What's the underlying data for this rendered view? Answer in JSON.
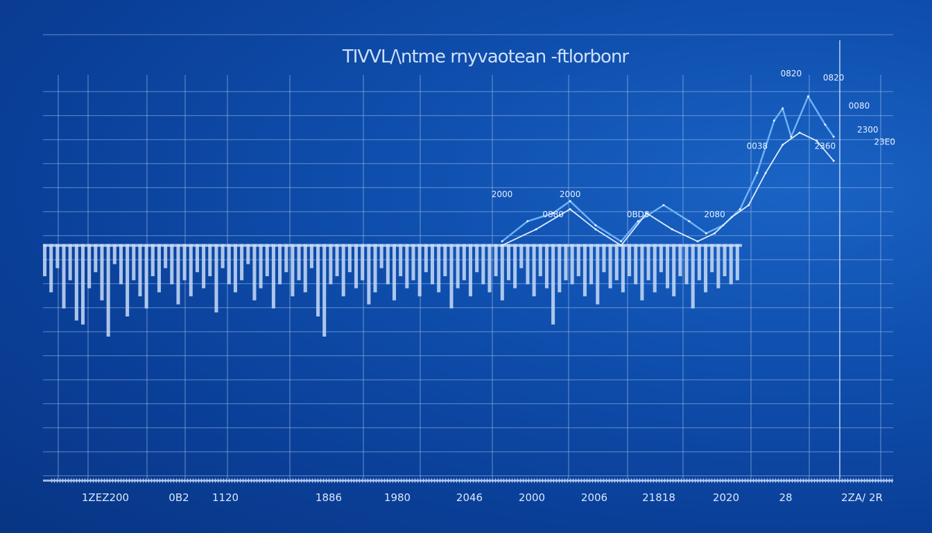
{
  "title": "TIVVL/\\ntme rnyvaotean -ftlorbonr",
  "chart_data": {
    "type": "line",
    "title": "TIVVL/\\ntme rnyvaotean -ftlorbonr",
    "xlabel": "",
    "ylabel": "",
    "x_tick_labels": [
      "1ZEZ200",
      "0B2",
      "1120",
      "1886",
      "1980",
      "2046",
      "2000",
      "2006",
      "21818",
      "2020",
      "28",
      "2ZA/ 2R"
    ],
    "grid": true,
    "ylim": [
      0,
      10
    ],
    "baseline": 5.8,
    "bars": [
      0.8,
      1.2,
      0.6,
      1.6,
      0.9,
      1.9,
      2.0,
      1.1,
      0.7,
      1.4,
      2.3,
      0.5,
      1.0,
      1.8,
      0.9,
      1.3,
      1.6,
      0.8,
      1.2,
      0.6,
      1.0,
      1.5,
      0.9,
      1.3,
      0.7,
      1.1,
      0.8,
      1.7,
      0.6,
      1.0,
      1.2,
      0.9,
      0.5,
      1.4,
      1.1,
      0.8,
      1.6,
      1.0,
      0.7,
      1.3,
      0.9,
      1.2,
      0.6,
      1.8,
      2.3,
      1.0,
      0.8,
      1.3,
      0.7,
      1.1,
      0.9,
      1.5,
      1.2,
      0.6,
      1.0,
      1.4,
      0.8,
      1.1,
      0.9,
      1.3,
      0.7,
      1.0,
      1.2,
      0.8,
      1.6,
      1.1,
      0.9,
      1.3,
      0.7,
      1.0,
      1.2,
      0.8,
      1.4,
      0.9,
      1.1,
      0.6,
      1.0,
      1.3,
      0.8,
      1.1,
      2.0,
      1.2,
      0.9,
      1.0,
      0.8,
      1.3,
      1.0,
      1.5,
      0.7,
      1.1,
      0.9,
      1.2,
      0.8,
      1.0,
      1.4,
      0.9,
      1.2,
      0.7,
      1.1,
      1.3,
      0.8,
      1.0,
      1.6,
      0.9,
      1.2,
      0.7,
      1.1,
      0.8,
      1.0,
      0.9
    ],
    "series": [
      {
        "values_x": [
          0.54,
          0.57,
          0.6,
          0.62,
          0.65,
          0.68,
          0.7,
          0.73,
          0.76,
          0.78,
          0.8,
          0.82,
          0.84,
          0.86,
          0.87,
          0.88,
          0.9,
          0.92,
          0.93
        ],
        "values_y": [
          5.9,
          6.4,
          6.6,
          6.9,
          6.3,
          5.9,
          6.4,
          6.8,
          6.4,
          6.1,
          6.3,
          6.7,
          7.6,
          8.9,
          9.2,
          8.5,
          9.5,
          8.8,
          8.5
        ]
      },
      {
        "values_x": [
          0.54,
          0.58,
          0.62,
          0.65,
          0.68,
          0.71,
          0.74,
          0.77,
          0.79,
          0.81,
          0.83,
          0.85,
          0.87,
          0.89,
          0.91,
          0.93
        ],
        "values_y": [
          5.8,
          6.2,
          6.7,
          6.2,
          5.8,
          6.6,
          6.2,
          5.9,
          6.1,
          6.5,
          6.8,
          7.6,
          8.3,
          8.6,
          8.4,
          7.9
        ]
      }
    ],
    "data_labels": [
      "2000",
      "2000",
      "0880",
      "0BD8",
      "2080",
      "0038",
      "0820",
      "0820",
      "0080",
      "2300",
      "23E0",
      "2360"
    ]
  },
  "colors": {
    "background": "#0f4fae",
    "grid": "#a9c6f2",
    "line_primary": "#6fb2f5",
    "line_secondary": "#dcebff",
    "bars": "#c8dcf7"
  }
}
